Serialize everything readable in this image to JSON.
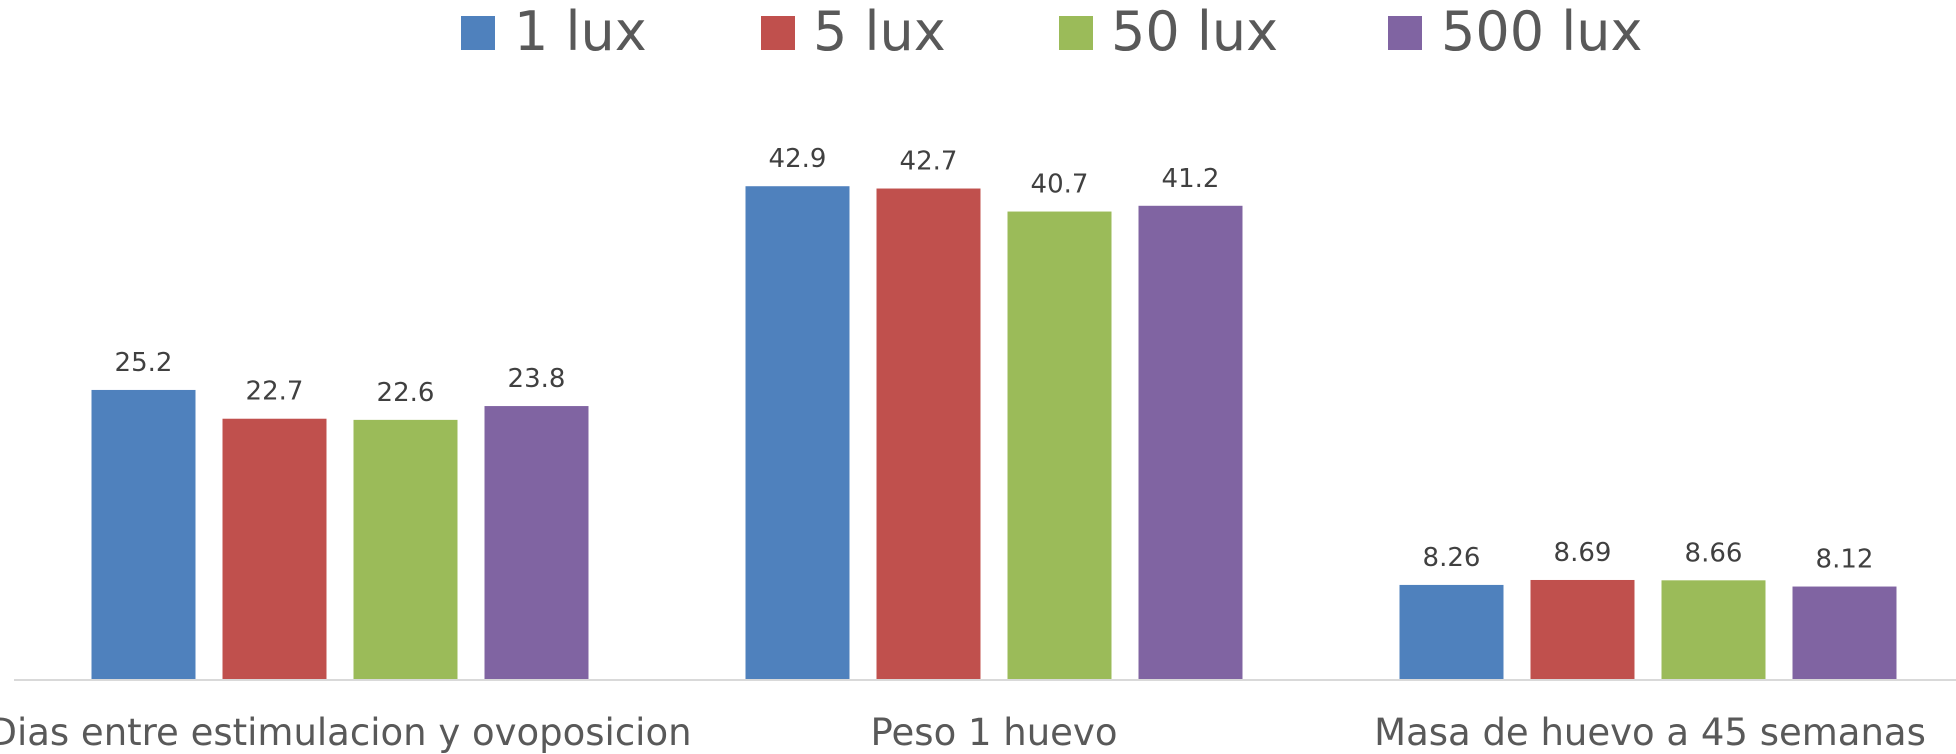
{
  "chart_data": {
    "type": "bar",
    "title": "",
    "xlabel": "",
    "ylabel": "",
    "ylim": [
      0,
      50
    ],
    "grid": false,
    "legend_position": "top",
    "categories": [
      "Dias entre estimulacion y ovoposicion",
      "Peso 1 huevo",
      "Masa de huevo a 45 semanas"
    ],
    "series": [
      {
        "name": "1 lux",
        "color": "#4F81BD",
        "values": [
          25.2,
          42.9,
          8.26
        ],
        "labels": [
          "25.2",
          "42.9",
          "8.26"
        ]
      },
      {
        "name": "5 lux",
        "color": "#C0504D",
        "values": [
          22.7,
          42.7,
          8.69
        ],
        "labels": [
          "22.7",
          "42.7",
          "8.69"
        ]
      },
      {
        "name": "50 lux",
        "color": "#9BBB59",
        "values": [
          22.6,
          40.7,
          8.66
        ],
        "labels": [
          "22.6",
          "40.7",
          "8.66"
        ]
      },
      {
        "name": "500 lux",
        "color": "#8064A2",
        "values": [
          23.8,
          41.2,
          8.12
        ],
        "labels": [
          "23.8",
          "41.2",
          "8.12"
        ]
      }
    ]
  }
}
